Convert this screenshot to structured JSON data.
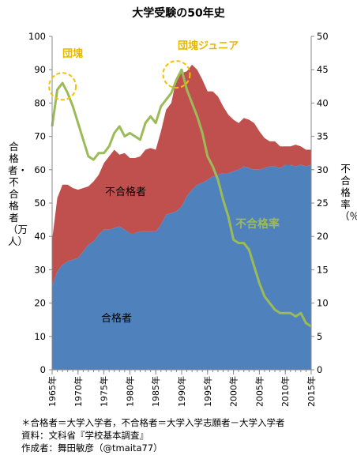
{
  "title": "大学受験の50年史",
  "y_left_label": "合格者・不合格者（万人）",
  "y_right_label": "不合格率（％）",
  "annotations": {
    "area_accepted": "合格者",
    "area_rejected": "不合格者",
    "rate_line": "不合格率",
    "dankai": "団塊",
    "dankai_junior": "団塊ジュニア"
  },
  "notes": [
    "＊合格者＝大学入学者，不合格者＝大学入学志願者－大学入学者",
    "資料：文科省『学校基本調査』",
    "作成者：舞田敏彦（@tmaita77）"
  ],
  "colors": {
    "accepted": "#4f81bd",
    "rejected": "#c0504d",
    "rate": "#9bbb59",
    "callout": "#e6b800"
  },
  "chart_data": {
    "type": "area",
    "x": [
      1965,
      1966,
      1967,
      1968,
      1969,
      1970,
      1971,
      1972,
      1973,
      1974,
      1975,
      1976,
      1977,
      1978,
      1979,
      1980,
      1981,
      1982,
      1983,
      1984,
      1985,
      1986,
      1987,
      1988,
      1989,
      1990,
      1991,
      1992,
      1993,
      1994,
      1995,
      1996,
      1997,
      1998,
      1999,
      2000,
      2001,
      2002,
      2003,
      2004,
      2005,
      2006,
      2007,
      2008,
      2009,
      2010,
      2011,
      2012,
      2013,
      2014,
      2015
    ],
    "x_tick_labels": [
      "1965年",
      "1970年",
      "1975年",
      "1980年",
      "1985年",
      "1990年",
      "1995年",
      "2000年",
      "2005年",
      "2010年",
      "2015年"
    ],
    "x_tick_values": [
      1965,
      1970,
      1975,
      1980,
      1985,
      1990,
      1995,
      2000,
      2005,
      2010,
      2015
    ],
    "series": [
      {
        "name": "合格者",
        "axis": "left",
        "values": [
          25.0,
          29.5,
          31.5,
          32.5,
          33.0,
          33.5,
          35.5,
          37.5,
          38.5,
          40.5,
          42.0,
          42.0,
          42.5,
          43.0,
          42.0,
          41.0,
          41.0,
          41.5,
          41.5,
          41.5,
          41.5,
          43.5,
          46.5,
          47.0,
          47.5,
          49.0,
          52.0,
          54.0,
          55.5,
          56.0,
          57.0,
          58.0,
          58.5,
          59.0,
          59.0,
          59.5,
          60.0,
          61.0,
          60.5,
          60.0,
          60.0,
          60.5,
          61.0,
          61.0,
          60.5,
          61.5,
          61.5,
          61.0,
          61.5,
          61.0,
          61.5
        ]
      },
      {
        "name": "不合格者",
        "axis": "left",
        "values": [
          14.0,
          22.0,
          24.0,
          23.0,
          21.5,
          20.5,
          19.0,
          17.5,
          18.0,
          18.0,
          20.0,
          22.0,
          23.5,
          21.5,
          23.0,
          22.5,
          22.5,
          22.5,
          24.5,
          25.0,
          24.5,
          28.0,
          31.5,
          33.0,
          40.0,
          40.0,
          37.5,
          37.5,
          34.5,
          31.0,
          26.5,
          25.5,
          23.5,
          20.0,
          17.5,
          15.5,
          14.0,
          14.5,
          14.5,
          14.0,
          11.5,
          9.0,
          7.5,
          7.5,
          6.5,
          5.5,
          5.5,
          6.5,
          5.5,
          5.0,
          4.5
        ]
      },
      {
        "name": "不合格率",
        "axis": "right",
        "type": "line",
        "values": [
          36.5,
          42.0,
          43.0,
          41.5,
          39.5,
          37.0,
          34.5,
          32.0,
          31.5,
          32.5,
          32.5,
          33.5,
          35.5,
          36.5,
          35.0,
          35.5,
          35.0,
          34.5,
          37.0,
          38.0,
          37.0,
          39.5,
          40.5,
          41.5,
          43.5,
          45.0,
          42.0,
          40.0,
          38.0,
          35.5,
          32.0,
          30.5,
          28.5,
          25.5,
          23.0,
          19.5,
          19.0,
          19.0,
          18.0,
          15.5,
          13.0,
          11.0,
          10.0,
          9.0,
          8.5,
          8.5,
          8.5,
          8.0,
          8.5,
          7.0,
          6.5
        ]
      }
    ],
    "y_left": {
      "min": 0,
      "max": 100,
      "ticks": [
        0,
        10,
        20,
        30,
        40,
        50,
        60,
        70,
        80,
        90,
        100
      ]
    },
    "y_right": {
      "min": 0,
      "max": 50,
      "ticks": [
        0,
        5,
        10,
        15,
        20,
        25,
        30,
        35,
        40,
        45,
        50
      ]
    },
    "stacked": true,
    "grid": false,
    "legend": "none"
  }
}
